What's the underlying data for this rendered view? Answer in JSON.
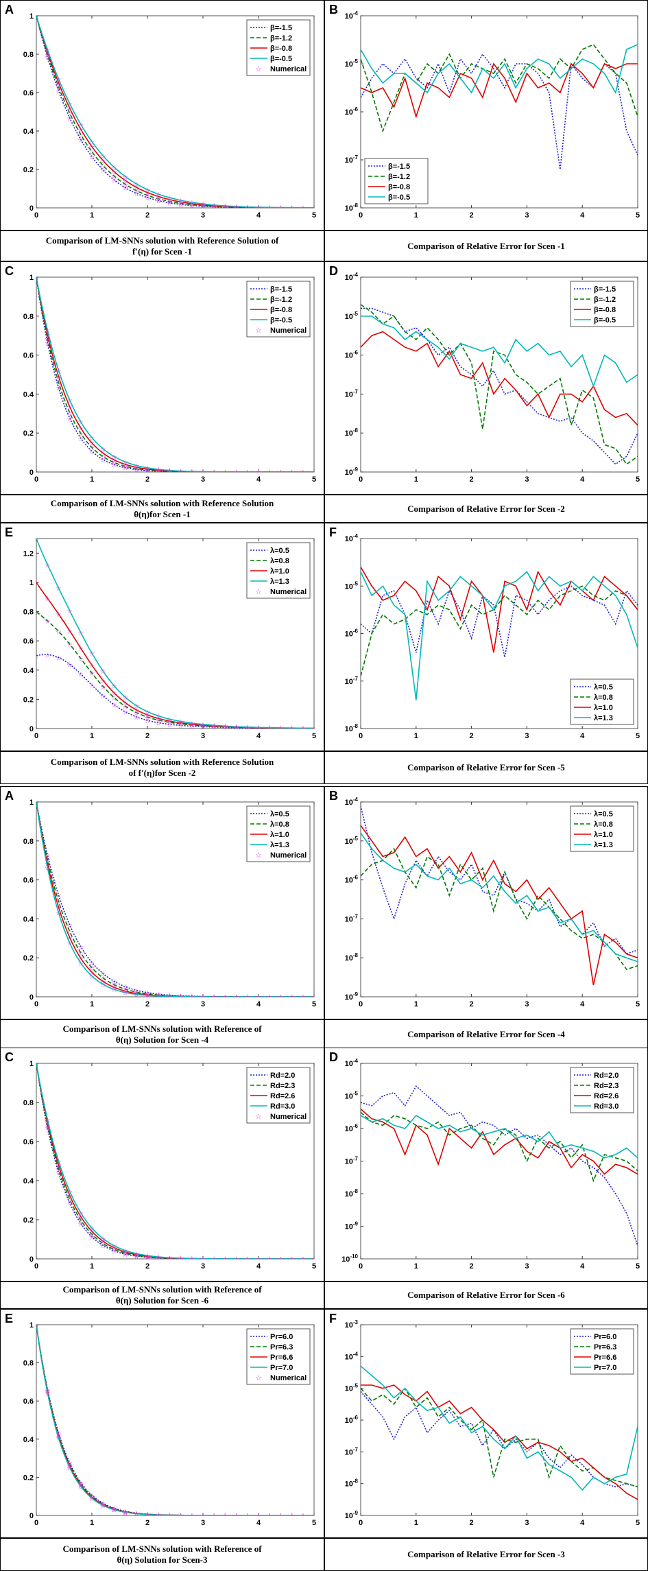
{
  "colors": {
    "blue": "#2020d0",
    "green": "#007a00",
    "red": "#e00000",
    "cyan": "#00b8b8",
    "magenta": "#e040e0"
  },
  "panels": [
    {
      "label": "A",
      "type": "line",
      "scale": "linear",
      "ylim": [
        0,
        1
      ],
      "yticks": [
        "0",
        "0.2",
        "0.4",
        "0.6",
        "0.8",
        "1"
      ],
      "xticks": [
        "0",
        "1",
        "2",
        "3",
        "4",
        "5"
      ],
      "legend": [
        "β=-1.5",
        "β=-1.2",
        "β=-0.8",
        "β=-0.5"
      ],
      "numerical_label": "Numerical",
      "starts": [
        1,
        1,
        1,
        1
      ],
      "rates": [
        1.18,
        1.1,
        1.02,
        0.95
      ],
      "shape": "exp",
      "caption": [
        "Comparison of LM-SNNs solution with Reference Solution of",
        "f′(η)  for Scen -1"
      ]
    },
    {
      "label": "B",
      "type": "line",
      "scale": "log",
      "ylim": [
        -8,
        -4
      ],
      "yticks": [
        "10-8",
        "10-7",
        "10-6",
        "10-5",
        "10-4"
      ],
      "xticks": [
        "0",
        "1",
        "2",
        "3",
        "4",
        "5"
      ],
      "legend": [
        "β=-1.5",
        "β=-1.2",
        "β=-0.8",
        "β=-0.5"
      ],
      "series": [
        [
          -5.7,
          -5.3,
          -5.0,
          -5.2,
          -4.9,
          -5.3,
          -5.5,
          -5.0,
          -5.6,
          -4.9,
          -5.2,
          -4.8,
          -5.1,
          -5.5,
          -5.0,
          -5.0,
          -5.2,
          -5.6,
          -7.2,
          -5.0,
          -5.3,
          -5.5,
          -5.0,
          -5.2,
          -6.4,
          -6.9
        ],
        [
          -4.9,
          -5.6,
          -6.4,
          -5.8,
          -5.2,
          -5.4,
          -5.0,
          -5.2,
          -4.8,
          -5.3,
          -5.0,
          -5.1,
          -5.2,
          -4.9,
          -5.4,
          -5.0,
          -5.1,
          -5.3,
          -4.9,
          -5.1,
          -4.7,
          -4.6,
          -4.9,
          -5.2,
          -5.4,
          -6.1
        ],
        [
          -5.5,
          -5.6,
          -5.5,
          -5.9,
          -5.3,
          -6.1,
          -5.4,
          -5.5,
          -5.7,
          -5.2,
          -5.3,
          -5.7,
          -5.0,
          -5.3,
          -5.8,
          -5.2,
          -5.5,
          -5.4,
          -5.6,
          -5.0,
          -5.2,
          -5.5,
          -5.0,
          -5.1,
          -5.0,
          -5.0
        ],
        [
          -4.7,
          -5.1,
          -5.4,
          -5.2,
          -5.2,
          -5.4,
          -5.6,
          -5.2,
          -5.0,
          -5.3,
          -5.6,
          -5.1,
          -5.3,
          -5.0,
          -5.5,
          -5.1,
          -4.9,
          -5.0,
          -5.3,
          -5.1,
          -4.9,
          -5.0,
          -5.2,
          -5.6,
          -4.7,
          -4.6
        ]
      ],
      "caption": [
        "Comparison of Relative Error for Scen -1"
      ]
    },
    {
      "label": "C",
      "type": "line",
      "scale": "linear",
      "ylim": [
        0,
        1
      ],
      "yticks": [
        "0",
        "0.2",
        "0.4",
        "0.6",
        "0.8",
        "1"
      ],
      "xticks": [
        "0",
        "1",
        "2",
        "3",
        "4",
        "5"
      ],
      "legend": [
        "β=-1.5",
        "β=-1.2",
        "β=-0.8",
        "β=-0.5"
      ],
      "numerical_label": "Numerical",
      "starts": [
        1,
        1,
        1,
        1
      ],
      "rates": [
        2.0,
        1.85,
        1.7,
        1.55
      ],
      "shape": "exp",
      "caption": [
        "Comparison of LM-SNNs solution with Reference Solution",
        "θ(η)for Scen -1"
      ]
    },
    {
      "label": "D",
      "type": "line",
      "scale": "log",
      "ylim": [
        -9,
        -4
      ],
      "yticks": [
        "10-9",
        "10-8",
        "10-7",
        "10-6",
        "10-5",
        "10-4"
      ],
      "xticks": [
        "0",
        "1",
        "2",
        "3",
        "4",
        "5"
      ],
      "legend": [
        "β=-1.5",
        "β=-1.2",
        "β=-0.8",
        "β=-0.5"
      ],
      "series": [
        [
          -4.8,
          -4.8,
          -4.9,
          -5.0,
          -5.4,
          -5.3,
          -5.6,
          -6.0,
          -5.8,
          -6.3,
          -6.5,
          -6.8,
          -6.4,
          -7.0,
          -6.9,
          -7.2,
          -7.5,
          -7.6,
          -7.7,
          -7.6,
          -8.0,
          -8.2,
          -8.5,
          -8.8,
          -8.6,
          -8.0
        ],
        [
          -4.7,
          -4.9,
          -5.2,
          -5.0,
          -5.4,
          -5.6,
          -5.3,
          -5.6,
          -6.0,
          -5.7,
          -6.2,
          -7.9,
          -5.9,
          -6.0,
          -6.5,
          -6.7,
          -7.0,
          -6.8,
          -6.6,
          -7.8,
          -6.9,
          -7.1,
          -8.3,
          -8.4,
          -8.8,
          -8.6
        ],
        [
          -5.8,
          -5.5,
          -5.4,
          -5.6,
          -5.8,
          -5.9,
          -5.7,
          -6.3,
          -5.9,
          -6.5,
          -6.6,
          -6.2,
          -7.0,
          -6.6,
          -6.9,
          -7.3,
          -7.0,
          -7.6,
          -7.0,
          -7.0,
          -7.2,
          -6.8,
          -7.4,
          -7.6,
          -7.5,
          -7.8
        ],
        [
          -5.0,
          -5.0,
          -5.2,
          -5.3,
          -5.6,
          -5.4,
          -5.6,
          -5.8,
          -6.1,
          -5.7,
          -5.8,
          -5.9,
          -5.8,
          -6.2,
          -5.6,
          -5.9,
          -5.7,
          -6.0,
          -5.9,
          -6.3,
          -6.0,
          -6.8,
          -6.0,
          -6.2,
          -6.7,
          -6.5
        ]
      ],
      "caption": [
        "Comparison of Relative Error for Scen -2"
      ]
    },
    {
      "label": "E",
      "type": "line",
      "scale": "linear",
      "ylim": [
        0,
        1.3
      ],
      "yticks": [
        "0",
        "0.2",
        "0.4",
        "0.6",
        "0.8",
        "1",
        "1.2"
      ],
      "xticks": [
        "0",
        "1",
        "2",
        "3",
        "4",
        "5"
      ],
      "legend": [
        "λ=0.5",
        "λ=0.8",
        "λ=1.0",
        "λ=1.3"
      ],
      "numerical_label": "Numerical",
      "starts": [
        0.5,
        0.8,
        1.0,
        1.3
      ],
      "rates": [
        1.3,
        1.3,
        1.3,
        1.3
      ],
      "shape": "hump",
      "caption": [
        "Comparison of LM-SNNs solution with Reference Solution",
        "of  f′(η)for Scen -2"
      ]
    },
    {
      "label": "F",
      "type": "line",
      "scale": "log",
      "ylim": [
        -8,
        -4
      ],
      "yticks": [
        "10-8",
        "10-7",
        "10-6",
        "10-5",
        "10-4"
      ],
      "xticks": [
        "0",
        "1",
        "2",
        "3",
        "4",
        "5"
      ],
      "legend": [
        "λ=0.5",
        "λ=0.8",
        "λ=1.0",
        "λ=1.3"
      ],
      "series": [
        [
          -5.8,
          -6.0,
          -5.2,
          -5.1,
          -5.6,
          -6.4,
          -5.3,
          -5.8,
          -5.1,
          -5.5,
          -6.1,
          -5.2,
          -5.4,
          -6.5,
          -5.2,
          -5.3,
          -5.6,
          -5.3,
          -5.1,
          -5.0,
          -5.2,
          -5.3,
          -5.4,
          -5.8,
          -5.1,
          -5.4
        ],
        [
          -6.9,
          -6.0,
          -5.6,
          -5.8,
          -5.7,
          -5.5,
          -5.6,
          -5.4,
          -5.5,
          -5.9,
          -5.4,
          -5.6,
          -5.5,
          -5.2,
          -5.4,
          -5.6,
          -5.3,
          -5.5,
          -5.2,
          -5.1,
          -5.0,
          -5.2,
          -5.3,
          -5.1,
          -5.2,
          -5.5
        ],
        [
          -4.6,
          -5.0,
          -5.3,
          -5.2,
          -4.9,
          -5.1,
          -5.5,
          -4.8,
          -5.0,
          -5.7,
          -4.9,
          -5.2,
          -6.4,
          -4.9,
          -5.0,
          -5.5,
          -4.7,
          -5.1,
          -5.4,
          -4.9,
          -5.1,
          -5.3,
          -4.8,
          -5.0,
          -5.2,
          -5.5
        ],
        [
          -4.7,
          -5.2,
          -5.0,
          -5.4,
          -5.6,
          -7.4,
          -4.9,
          -5.3,
          -5.1,
          -4.8,
          -5.0,
          -5.2,
          -5.5,
          -5.0,
          -4.9,
          -4.7,
          -5.1,
          -4.8,
          -5.0,
          -4.9,
          -5.1,
          -4.8,
          -5.0,
          -5.2,
          -5.6,
          -6.3
        ]
      ],
      "caption": [
        "Comparison of Relative Error for Scen -5"
      ]
    },
    {
      "label": "A",
      "type": "line",
      "scale": "linear",
      "ylim": [
        0,
        1
      ],
      "yticks": [
        "0",
        "0.2",
        "0.4",
        "0.6",
        "0.8",
        "1"
      ],
      "xticks": [
        "0",
        "1",
        "2",
        "3",
        "4",
        "5"
      ],
      "legend": [
        "λ=0.5",
        "λ=0.8",
        "λ=1.0",
        "λ=1.3"
      ],
      "numerical_label": "Numerical",
      "starts": [
        1,
        1,
        1,
        1
      ],
      "rates": [
        1.55,
        1.7,
        1.85,
        2.0
      ],
      "shape": "exp",
      "caption": [
        "Comparison of LM-SNNs solution with Reference of",
        "θ(η)  Solution for Scen -4"
      ]
    },
    {
      "label": "B",
      "type": "line",
      "scale": "log",
      "ylim": [
        -9,
        -4
      ],
      "yticks": [
        "10-9",
        "10-8",
        "10-7",
        "10-6",
        "10-5",
        "10-4"
      ],
      "xticks": [
        "0",
        "1",
        "2",
        "3",
        "4",
        "5"
      ],
      "legend": [
        "λ=0.5",
        "λ=0.8",
        "λ=1.0",
        "λ=1.3"
      ],
      "series": [
        [
          -4.1,
          -5.3,
          -6.2,
          -7.0,
          -6.1,
          -5.5,
          -5.9,
          -5.4,
          -5.8,
          -6.0,
          -5.6,
          -6.3,
          -6.4,
          -5.8,
          -6.5,
          -6.6,
          -6.8,
          -6.5,
          -7.2,
          -7.0,
          -7.4,
          -7.1,
          -7.7,
          -7.5,
          -7.9,
          -7.8
        ],
        [
          -5.9,
          -5.6,
          -5.5,
          -5.2,
          -5.8,
          -6.2,
          -5.4,
          -5.6,
          -6.4,
          -5.6,
          -6.0,
          -5.7,
          -6.8,
          -5.8,
          -6.5,
          -7.0,
          -6.4,
          -6.7,
          -7.0,
          -7.3,
          -7.5,
          -7.4,
          -7.6,
          -7.9,
          -8.3,
          -8.2
        ],
        [
          -4.6,
          -5.0,
          -5.4,
          -5.3,
          -4.9,
          -5.4,
          -5.2,
          -5.7,
          -5.4,
          -5.8,
          -5.3,
          -6.0,
          -5.5,
          -6.1,
          -6.3,
          -6.0,
          -6.5,
          -6.2,
          -6.6,
          -7.0,
          -6.8,
          -8.7,
          -7.4,
          -7.6,
          -7.9,
          -8.0
        ],
        [
          -4.8,
          -5.2,
          -5.5,
          -5.7,
          -5.8,
          -5.6,
          -5.9,
          -6.0,
          -5.7,
          -6.1,
          -6.0,
          -6.2,
          -5.9,
          -6.3,
          -6.6,
          -6.4,
          -6.8,
          -6.7,
          -7.1,
          -7.0,
          -7.4,
          -7.3,
          -7.6,
          -7.9,
          -8.0,
          -8.1
        ]
      ],
      "caption": [
        "Comparison of Relative Error for Scen -4"
      ]
    },
    {
      "label": "C",
      "type": "line",
      "scale": "linear",
      "ylim": [
        0,
        1
      ],
      "yticks": [
        "0",
        "0.2",
        "0.4",
        "0.6",
        "0.8",
        "1"
      ],
      "xticks": [
        "0",
        "1",
        "2",
        "3",
        "4",
        "5"
      ],
      "legend": [
        "Rd=2.0",
        "Rd=2.3",
        "Rd=2.6",
        "Rd=3.0"
      ],
      "numerical_label": "Numerical",
      "starts": [
        1,
        1,
        1,
        1
      ],
      "rates": [
        1.95,
        1.85,
        1.75,
        1.65
      ],
      "shape": "exp",
      "caption": [
        "Comparison of LM-SNNs solution with Reference of",
        "θ(η)  Solution for Scen -6"
      ]
    },
    {
      "label": "D",
      "type": "line",
      "scale": "log",
      "ylim": [
        -10,
        -4
      ],
      "yticks": [
        "10-10",
        "10-9",
        "10-8",
        "10-7",
        "10-6",
        "10-5",
        "10-4"
      ],
      "xticks": [
        "0",
        "1",
        "2",
        "3",
        "4",
        "5"
      ],
      "legend": [
        "Rd=2.0",
        "Rd=2.3",
        "Rd=2.6",
        "Rd=3.0"
      ],
      "series": [
        [
          -5.2,
          -5.3,
          -5.0,
          -4.9,
          -5.3,
          -4.7,
          -5.0,
          -5.3,
          -5.6,
          -5.5,
          -6.0,
          -5.8,
          -5.9,
          -6.2,
          -6.0,
          -6.3,
          -6.2,
          -6.5,
          -6.8,
          -6.6,
          -7.0,
          -7.2,
          -7.5,
          -8.0,
          -8.6,
          -9.6
        ],
        [
          -5.5,
          -5.8,
          -5.9,
          -5.6,
          -5.7,
          -5.9,
          -6.0,
          -5.8,
          -6.2,
          -6.0,
          -5.9,
          -6.3,
          -6.5,
          -6.0,
          -6.2,
          -7.0,
          -6.3,
          -6.6,
          -6.4,
          -6.9,
          -6.5,
          -7.6,
          -6.8,
          -6.9,
          -7.0,
          -7.3
        ],
        [
          -5.4,
          -5.7,
          -5.8,
          -6.0,
          -6.8,
          -5.9,
          -6.2,
          -7.1,
          -6.0,
          -6.3,
          -6.6,
          -6.1,
          -6.8,
          -6.5,
          -6.3,
          -6.7,
          -6.9,
          -6.4,
          -6.6,
          -7.2,
          -6.8,
          -7.0,
          -7.4,
          -7.1,
          -7.2,
          -7.4
        ],
        [
          -5.6,
          -5.8,
          -5.7,
          -5.9,
          -6.0,
          -5.6,
          -5.8,
          -6.0,
          -5.9,
          -6.1,
          -6.0,
          -6.2,
          -6.1,
          -6.0,
          -6.3,
          -6.2,
          -6.4,
          -6.1,
          -6.6,
          -6.5,
          -6.6,
          -6.7,
          -6.9,
          -6.8,
          -6.6,
          -6.9
        ]
      ],
      "caption": [
        "Comparison of Relative Error for Scen -6"
      ]
    },
    {
      "label": "E",
      "type": "line",
      "scale": "linear",
      "ylim": [
        0,
        1
      ],
      "yticks": [
        "0",
        "0.2",
        "0.4",
        "0.6",
        "0.8",
        "1"
      ],
      "xticks": [
        "0",
        "1",
        "2",
        "3",
        "4",
        "5"
      ],
      "legend": [
        "Pr=6.0",
        "Pr=6.3",
        "Pr=6.6",
        "Pr=7.0"
      ],
      "numerical_label": "Numerical",
      "starts": [
        1,
        1,
        1,
        1
      ],
      "rates": [
        2.0,
        2.05,
        2.1,
        2.15
      ],
      "shape": "exp",
      "caption": [
        "Comparison of LM-SNNs solution with Reference of",
        "θ(η)  Solution for Scen-3"
      ]
    },
    {
      "label": "F",
      "type": "line",
      "scale": "log",
      "ylim": [
        -9,
        -3
      ],
      "yticks": [
        "10-9",
        "10-8",
        "10-7",
        "10-6",
        "10-5",
        "10-4",
        "10-3"
      ],
      "xticks": [
        "0",
        "1",
        "2",
        "3",
        "4",
        "5"
      ],
      "legend": [
        "Pr=6.0",
        "Pr=6.3",
        "Pr=6.6",
        "Pr=7.0"
      ],
      "series": [
        [
          -5.1,
          -5.5,
          -5.9,
          -6.6,
          -5.9,
          -5.6,
          -6.4,
          -6.0,
          -5.7,
          -6.2,
          -6.1,
          -6.8,
          -6.3,
          -6.9,
          -6.6,
          -7.0,
          -6.7,
          -7.2,
          -7.5,
          -7.1,
          -7.4,
          -7.8,
          -8.0,
          -8.1,
          -8.0,
          -8.1
        ],
        [
          -5.0,
          -5.4,
          -5.2,
          -5.5,
          -5.0,
          -5.6,
          -5.3,
          -5.9,
          -5.6,
          -6.0,
          -6.3,
          -6.0,
          -7.8,
          -6.6,
          -6.7,
          -6.6,
          -6.6,
          -7.8,
          -6.8,
          -7.3,
          -7.6,
          -7.5,
          -7.8,
          -7.9,
          -8.0,
          -8.1
        ],
        [
          -4.9,
          -4.9,
          -5.0,
          -4.9,
          -5.2,
          -5.4,
          -5.1,
          -5.6,
          -5.4,
          -5.8,
          -5.6,
          -6.0,
          -6.3,
          -6.7,
          -6.5,
          -6.9,
          -6.7,
          -6.8,
          -7.0,
          -7.3,
          -7.2,
          -7.5,
          -7.8,
          -8.0,
          -8.3,
          -8.5
        ],
        [
          -4.3,
          -4.6,
          -4.9,
          -5.3,
          -5.0,
          -5.4,
          -5.7,
          -5.6,
          -6.1,
          -5.9,
          -6.4,
          -6.2,
          -6.6,
          -6.9,
          -6.5,
          -7.2,
          -7.0,
          -7.4,
          -7.6,
          -7.8,
          -8.2,
          -7.8,
          -8.0,
          -7.8,
          -7.7,
          -6.2
        ]
      ],
      "caption": [
        "Comparison of Relative Error for Scen -3"
      ]
    }
  ]
}
